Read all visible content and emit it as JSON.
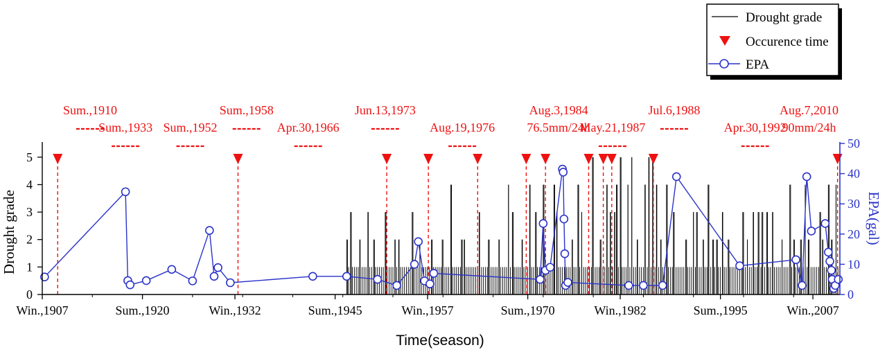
{
  "chart_data": {
    "type": "line",
    "xlabel": "Time(season)",
    "ylabel_left": "Drought grade",
    "ylabel_right": "EPA(gal)",
    "ylim_left": [
      0,
      5.5
    ],
    "ylim_right": [
      0,
      50
    ],
    "yticks_left": [
      "0",
      "1",
      "2",
      "3",
      "4",
      "5"
    ],
    "yticks_right": [
      "0",
      "10",
      "20",
      "30",
      "40",
      "50"
    ],
    "x_range": [
      1907,
      2010.5
    ],
    "x_ticks": [
      {
        "label": "Win.,1907",
        "x": 1907
      },
      {
        "label": "Sum.,1920",
        "x": 1920
      },
      {
        "label": "Win.,1932",
        "x": 1932
      },
      {
        "label": "Sum.,1945",
        "x": 1945
      },
      {
        "label": "Win.,1957",
        "x": 1957
      },
      {
        "label": "Sum.,1970",
        "x": 1970
      },
      {
        "label": "Win.,1982",
        "x": 1982
      },
      {
        "label": "Sum.,1995",
        "x": 1995
      },
      {
        "label": "Win.,2007",
        "x": 2007
      }
    ],
    "legend": {
      "position": "top-right",
      "entries": [
        "Drought grade",
        "Occurence time",
        "EPA"
      ]
    },
    "colors": {
      "drought": "#000000",
      "occurrence": "#ee1111",
      "epa": "#2a32c8",
      "right_axis": "#2a32c8"
    },
    "events": [
      {
        "label": "Sum.,1910",
        "x": 1910.2
      },
      {
        "label": "Sum.,1933",
        "x": 1913.5,
        "text_only": true
      },
      {
        "label": "Sum.,1952",
        "x": 1933.2
      },
      {
        "label": "Sum.,1958",
        "x": 1952.0
      },
      {
        "label": "Apr.30,1966",
        "x": 1958.0
      },
      {
        "label": "Jun.13,1973",
        "x": 1965.8
      },
      {
        "label": "Aug.19,1976",
        "x": 1973.2
      },
      {
        "label": "Aug.3,1984",
        "x": 1976.8
      },
      {
        "label": "76.5mm/24h",
        "x": 1976.8,
        "text_only": true
      },
      {
        "label": "May.21,1987",
        "x": 1984.0
      },
      {
        "label": "Jul.6,1988",
        "x": 1986.9
      },
      {
        "label": "Apr.30,1992",
        "x": 1988.2
      },
      {
        "label": "Aug.7,2010",
        "x": 1992.4
      },
      {
        "label": "90mm/24h",
        "x": 2010.2,
        "text_only": true
      }
    ],
    "event_labels": [
      {
        "text": "Sum.,1910",
        "row": 0,
        "center": 1913.2,
        "dash": true
      },
      {
        "text": "Sum.,1933",
        "row": 1,
        "center": 1917.8,
        "dash": true
      },
      {
        "text": "Sum.,1952",
        "row": 1,
        "center": 1926.2,
        "dash": true
      },
      {
        "text": "Sum.,1958",
        "row": 0,
        "center": 1933.5,
        "dash": true
      },
      {
        "text": "Apr.30,1966",
        "row": 1,
        "center": 1941.5,
        "dash": true
      },
      {
        "text": "Jun.13,1973",
        "row": 0,
        "center": 1951.5,
        "dash": true
      },
      {
        "text": "Aug.19,1976",
        "row": 1,
        "center": 1961.5,
        "dash": true
      },
      {
        "text": "Aug.3,1984",
        "row": 0,
        "center": 1974.0,
        "dash": false
      },
      {
        "text": "76.5mm/24h",
        "row": 1,
        "center": 1974.0,
        "dash": false
      },
      {
        "text": "May.21,1987",
        "row": 1,
        "center": 1981.0,
        "dash": true
      },
      {
        "text": "Jul.6,1988",
        "row": 0,
        "center": 1989.0,
        "dash": true
      },
      {
        "text": "Apr.30,1992",
        "row": 1,
        "center": 1999.5,
        "dash": true
      },
      {
        "text": "Aug.7,2010",
        "row": 0,
        "center": 2006.5,
        "dash": false
      },
      {
        "text": "90mm/24h",
        "row": 1,
        "center": 2006.5,
        "dash": false
      }
    ],
    "occurrence_markers": [
      1909.0,
      1932.4,
      1951.7,
      1957.1,
      1963.5,
      1969.8,
      1972.3,
      1977.9,
      1979.8,
      1980.9,
      1986.3,
      2010.2
    ],
    "epa_series": {
      "name": "EPA",
      "points": [
        [
          1907.3,
          5.8
        ],
        [
          1917.8,
          34.0
        ],
        [
          1918.1,
          4.6
        ],
        [
          1918.4,
          3.2
        ],
        [
          1920.5,
          4.6
        ],
        [
          1923.8,
          8.3
        ],
        [
          1926.5,
          4.5
        ],
        [
          1928.7,
          21.2
        ],
        [
          1929.3,
          6.0
        ],
        [
          1929.8,
          8.9
        ],
        [
          1931.4,
          3.9
        ],
        [
          1942.1,
          6.0
        ],
        [
          1946.5,
          6.0
        ],
        [
          1950.5,
          5.0
        ],
        [
          1953.0,
          3.0
        ],
        [
          1955.3,
          10.0
        ],
        [
          1955.8,
          17.5
        ],
        [
          1956.6,
          4.5
        ],
        [
          1957.3,
          3.5
        ],
        [
          1957.8,
          7.0
        ],
        [
          1971.6,
          5.0
        ],
        [
          1972.0,
          23.5
        ],
        [
          1972.3,
          8.0
        ],
        [
          1972.9,
          9.0
        ],
        [
          1974.5,
          41.5
        ],
        [
          1974.6,
          40.5
        ],
        [
          1974.7,
          25.0
        ],
        [
          1974.8,
          13.5
        ],
        [
          1974.9,
          3.0
        ],
        [
          1975.2,
          4.0
        ],
        [
          1983.1,
          3.0
        ],
        [
          1985.0,
          3.0
        ],
        [
          1987.5,
          3.0
        ],
        [
          1989.3,
          39.0
        ],
        [
          1997.5,
          9.5
        ],
        [
          2004.8,
          11.5
        ],
        [
          2005.6,
          3.0
        ],
        [
          2006.2,
          39.0
        ],
        [
          2006.8,
          21.0
        ],
        [
          2008.6,
          23.5
        ],
        [
          2009.0,
          14.0
        ],
        [
          2009.2,
          11.0
        ],
        [
          2009.4,
          8.0
        ],
        [
          2009.5,
          5.0
        ],
        [
          2009.7,
          2.0
        ],
        [
          2009.9,
          3.0
        ],
        [
          2010.3,
          5.0
        ]
      ]
    },
    "drought_series": {
      "name": "Drought grade",
      "start": 1946.5,
      "end": 2010.5,
      "base_grade": 1,
      "tall_bars": [
        [
          1946.6,
          2
        ],
        [
          1947.1,
          3
        ],
        [
          1948.2,
          2
        ],
        [
          1949.3,
          3
        ],
        [
          1950.1,
          2
        ],
        [
          1951.6,
          3
        ],
        [
          1952.8,
          2
        ],
        [
          1953.3,
          2
        ],
        [
          1955.1,
          3
        ],
        [
          1956.0,
          2
        ],
        [
          1957.6,
          2
        ],
        [
          1958.9,
          2
        ],
        [
          1960.1,
          4
        ],
        [
          1961.4,
          2
        ],
        [
          1961.8,
          2
        ],
        [
          1963.7,
          3
        ],
        [
          1964.9,
          2
        ],
        [
          1966.3,
          2
        ],
        [
          1967.5,
          4
        ],
        [
          1968.1,
          3
        ],
        [
          1969.3,
          2
        ],
        [
          1970.3,
          4
        ],
        [
          1971.1,
          3
        ],
        [
          1972.1,
          4
        ],
        [
          1973.4,
          4
        ],
        [
          1973.8,
          3
        ],
        [
          1975.8,
          2
        ],
        [
          1976.6,
          4
        ],
        [
          1977.0,
          3
        ],
        [
          1978.4,
          5
        ],
        [
          1979.4,
          2
        ],
        [
          1980.3,
          4
        ],
        [
          1980.7,
          3
        ],
        [
          1981.3,
          3
        ],
        [
          1981.6,
          4
        ],
        [
          1982.1,
          5
        ],
        [
          1983.0,
          4
        ],
        [
          1983.5,
          5
        ],
        [
          1984.2,
          2
        ],
        [
          1985.2,
          4
        ],
        [
          1985.7,
          5
        ],
        [
          1986.2,
          5
        ],
        [
          1986.7,
          4
        ],
        [
          1987.3,
          2
        ],
        [
          1988.1,
          4
        ],
        [
          1988.9,
          3
        ],
        [
          1990.6,
          2
        ],
        [
          1991.5,
          3
        ],
        [
          1991.9,
          3
        ],
        [
          1992.8,
          2
        ],
        [
          1993.4,
          4
        ],
        [
          1994.1,
          2
        ],
        [
          1994.6,
          2
        ],
        [
          1995.3,
          3
        ],
        [
          1996.1,
          2
        ],
        [
          1997.9,
          3
        ],
        [
          1998.5,
          2
        ],
        [
          1999.3,
          3
        ],
        [
          1999.9,
          3
        ],
        [
          2000.4,
          3
        ],
        [
          2001.1,
          3
        ],
        [
          2001.8,
          3
        ],
        [
          2003.0,
          2
        ],
        [
          2004.1,
          4
        ],
        [
          2004.6,
          2
        ],
        [
          2005.4,
          2
        ],
        [
          2006.0,
          4
        ],
        [
          2006.4,
          2
        ],
        [
          2007.9,
          3
        ],
        [
          2008.3,
          2
        ],
        [
          2009.1,
          4
        ],
        [
          2009.4,
          2
        ],
        [
          2010.0,
          4
        ]
      ]
    }
  }
}
